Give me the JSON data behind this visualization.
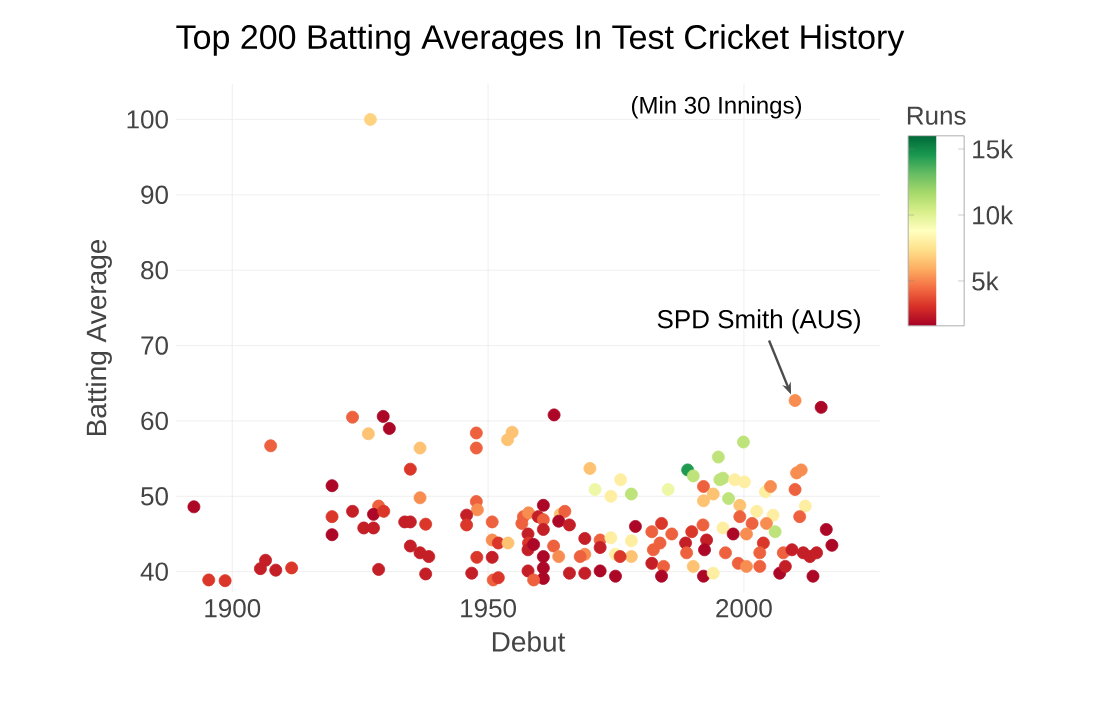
{
  "chart_data": {
    "type": "scatter",
    "title": "Top 200 Batting Averages In Test Cricket History",
    "xlabel": "Debut",
    "ylabel": "Batting Average",
    "clabel": "Runs",
    "annotations": [
      "(Min 30 Innings)",
      {
        "text": "SPD Smith (AUS)",
        "x": 2010,
        "y": 62.7
      }
    ],
    "x": [
      1892.5,
      1895.4,
      1898.6,
      1905.5,
      1906.5,
      1908.5,
      1911.6,
      1907.5,
      1919.5,
      1919.5,
      1919.5,
      1923.5,
      1929.5,
      1930.7,
      1926.6,
      1936.7,
      1934.8,
      1936.7,
      1923.5,
      1928.6,
      1927.6,
      1929.6,
      1925.7,
      1927.6,
      1933.7,
      1934.8,
      1937.8,
      1934.8,
      1936.7,
      1938.4,
      1928.6,
      1937.8,
      1927,
      1947.7,
      1947.7,
      1954.7,
      1953.8,
      1962.9,
      1947.7,
      1947.9,
      1945.8,
      1945.8,
      1950.8,
      1950.8,
      1952,
      1953.9,
      1950.8,
      1947.8,
      1946.8,
      1951,
      1952,
      1956.9,
      1957.9,
      1959.8,
      1960.8,
      1960.8,
      1956.6,
      1957.8,
      1957.9,
      1957.8,
      1958.9,
      1960.8,
      1960.8,
      1960.8,
      1960.8,
      1957.8,
      1958.9,
      1962.8,
      1963.8,
      1964.1,
      1965,
      1963.8,
      1965.9,
      1968.9,
      1971.9,
      1971.9,
      1968.9,
      1968,
      1965.9,
      1968.9,
      1971.9,
      1974.9,
      1969.9,
      1970.9,
      1974,
      1975.9,
      1978,
      1974,
      1978,
      1974.9,
      1978,
      1975.8,
      1978.8,
      2010,
      2015.1,
      1999.9,
      1995,
      1989,
      1990.1,
      1995.3,
      1995.9,
      1998.2,
      2000.1,
      1985.2,
      1992.1,
      1994,
      1997,
      2004.2,
      2005.2,
      2010.3,
      2011.2,
      2010,
      1992.1,
      2012,
      2010.9,
      1999.2,
      2002.5,
      2005.7,
      2004.4,
      2006.1,
      1999.2,
      2001.6,
      1995.9,
      1992,
      1982,
      1983.9,
      1983.6,
      1985.9,
      1989.8,
      1988.6,
      1992.7,
      1997.9,
      2000.5,
      1996.4,
      1992.3,
      1988.8,
      1982.3,
      1982,
      1984.3,
      1983.9,
      1990.1,
      1992.1,
      1994,
      1998.9,
      2000.5,
      2003.1,
      2007,
      2007.7,
      2009.4,
      2008.1,
      2011.6,
      2012.9,
      2014.2,
      2013.5,
      2016.1,
      2017.2,
      2003.8,
      2003.1
    ],
    "values": [
      48.6,
      38.9,
      38.8,
      40.4,
      41.5,
      40.2,
      40.5,
      56.7,
      51.4,
      47.3,
      44.9,
      60.5,
      60.6,
      59,
      58.3,
      56.4,
      53.6,
      49.8,
      48,
      48.7,
      47.6,
      48,
      45.8,
      45.8,
      46.6,
      46.6,
      46.3,
      43.4,
      42.5,
      42,
      40.3,
      39.7,
      100,
      58.4,
      56.4,
      58.5,
      57.5,
      60.8,
      49.3,
      48.2,
      47.5,
      46.2,
      46.6,
      44.2,
      43.8,
      43.8,
      41.9,
      41.9,
      39.8,
      38.9,
      39.2,
      47.3,
      47.8,
      47.3,
      48.8,
      46.9,
      46.4,
      45,
      43.8,
      42.9,
      43.6,
      45.6,
      42,
      40.5,
      39.1,
      40.1,
      38.9,
      43.4,
      42,
      47.6,
      48,
      46.7,
      46.2,
      44.4,
      44.2,
      43.2,
      42.3,
      42,
      39.8,
      39.8,
      40.1,
      39.4,
      53.7,
      50.9,
      50,
      52.2,
      50.3,
      44.5,
      44.1,
      42.3,
      42,
      42,
      46,
      62.7,
      61.8,
      57.2,
      55.2,
      53.5,
      52.7,
      52.2,
      52.4,
      52.2,
      51.9,
      50.9,
      51.3,
      50.3,
      49.7,
      50.6,
      51.3,
      53.1,
      53.5,
      50.9,
      49.4,
      48.7,
      47.3,
      48.8,
      48,
      47.5,
      46.4,
      45.3,
      47.3,
      46.4,
      45.8,
      46.2,
      45.3,
      46.4,
      43.8,
      45,
      45.3,
      43.8,
      44.2,
      45,
      45,
      42.5,
      42.9,
      42.5,
      42.9,
      41.1,
      40.7,
      39.4,
      40.7,
      39.4,
      39.8,
      41.1,
      40.7,
      40.7,
      39.8,
      42.5,
      42.9,
      40.7,
      42.5,
      42,
      42.5,
      39.4,
      45.6,
      43.5,
      43.8,
      42.5
    ],
    "cvalues": [
      1800,
      3200,
      3200,
      2500,
      2500,
      2500,
      3200,
      4200,
      1800,
      3200,
      1800,
      4200,
      1800,
      1800,
      6500,
      6500,
      3200,
      5200,
      2500,
      4200,
      1800,
      3200,
      2500,
      2500,
      2500,
      2500,
      3200,
      2500,
      2500,
      2500,
      2500,
      2500,
      7000,
      4200,
      4200,
      6500,
      6500,
      1800,
      4200,
      5200,
      2500,
      3200,
      4200,
      5200,
      3200,
      6500,
      2500,
      3200,
      2500,
      4200,
      3200,
      4200,
      5200,
      2500,
      1800,
      4200,
      4200,
      2500,
      3200,
      2500,
      1800,
      2500,
      1800,
      1800,
      1800,
      2500,
      4200,
      4200,
      5200,
      6500,
      4200,
      1800,
      2500,
      2500,
      4200,
      2500,
      5200,
      4200,
      2500,
      2500,
      1800,
      1800,
      6500,
      9500,
      8000,
      8000,
      11000,
      8000,
      8000,
      8000,
      6500,
      3200,
      1800,
      5200,
      1800,
      11000,
      11000,
      14500,
      11000,
      11000,
      11000,
      8000,
      8000,
      9500,
      4200,
      6500,
      11000,
      8000,
      5200,
      5200,
      5200,
      4200,
      6500,
      8000,
      4200,
      6500,
      8000,
      8000,
      5200,
      11000,
      4200,
      4200,
      8000,
      4200,
      4200,
      3200,
      4200,
      4200,
      3200,
      2500,
      2500,
      1800,
      5200,
      4200,
      1800,
      4200,
      4200,
      2500,
      4200,
      1800,
      6500,
      1800,
      8000,
      4200,
      5200,
      4200,
      1800,
      4200,
      2500,
      2500,
      2500,
      2500,
      2500,
      1800,
      1800,
      1800,
      3200,
      4200
    ],
    "xlim": [
      1889,
      2026.6
    ],
    "ylim": [
      37.3,
      104.7
    ],
    "xticks": [
      1900,
      1950,
      2000
    ],
    "yticks": [
      40,
      50,
      60,
      70,
      80,
      90,
      100
    ],
    "clim": [
      1600,
      16000
    ],
    "cticks": [
      {
        "value": 5000,
        "label": "5k"
      },
      {
        "value": 10000,
        "label": "10k"
      },
      {
        "value": 15000,
        "label": "15k"
      }
    ],
    "grid": true,
    "marker": "circle"
  }
}
